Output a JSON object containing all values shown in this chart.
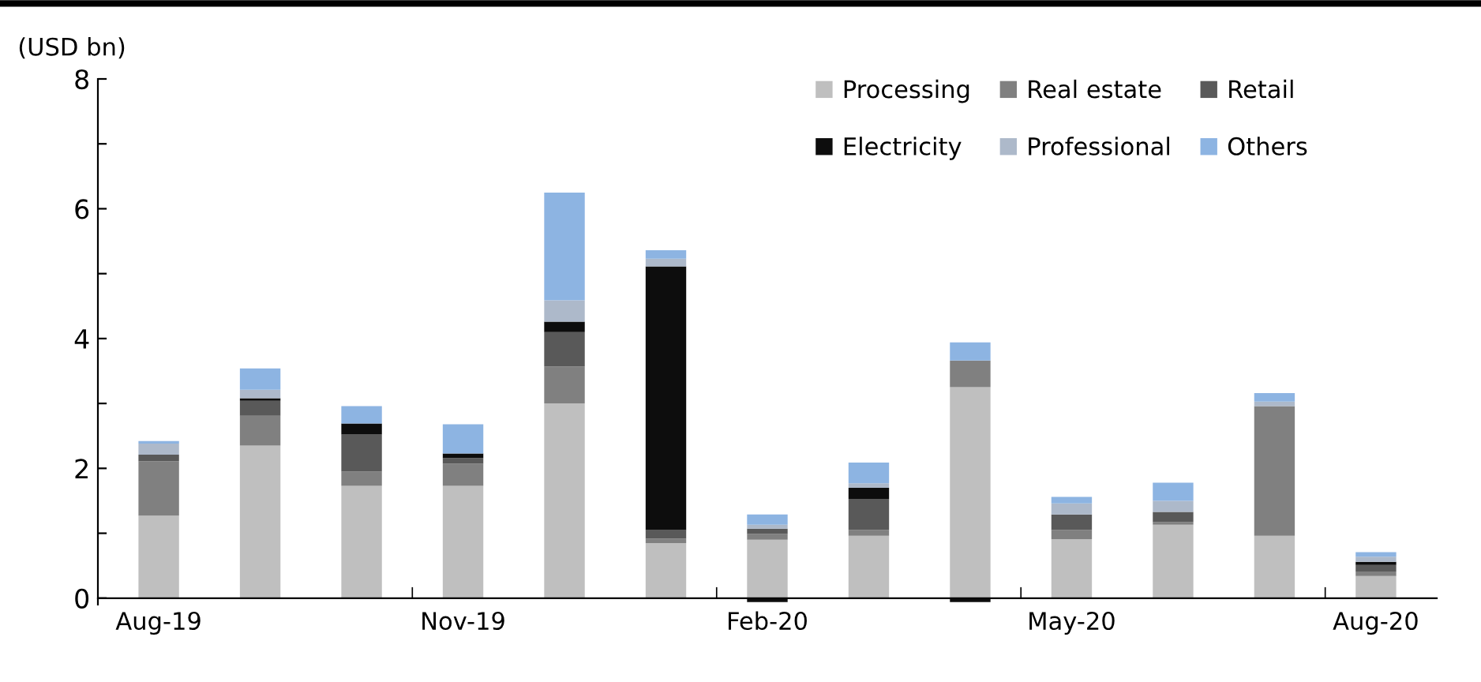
{
  "chart_data": {
    "type": "bar",
    "stacked": true,
    "ylabel": "(USD bn)",
    "categories": [
      "Aug-19",
      null,
      null,
      "Nov-19",
      null,
      null,
      "Feb-20",
      null,
      null,
      "May-20",
      null,
      null,
      "Aug-20"
    ],
    "ylim": [
      -0.1,
      8
    ],
    "yticks": [
      0,
      {
        "value": 1,
        "label": null
      },
      2,
      {
        "value": 3,
        "label": null
      },
      4,
      {
        "value": 5,
        "label": null
      },
      6,
      {
        "value": 7,
        "label": null
      },
      8
    ],
    "grid": false,
    "legend": "top right",
    "series": [
      {
        "name": "Processing",
        "color": "#bfbfbf",
        "values": [
          1.27,
          2.35,
          1.73,
          1.73,
          3.0,
          0.85,
          0.9,
          0.96,
          3.25,
          0.91,
          1.13,
          0.96,
          0.34
        ]
      },
      {
        "name": "Real estate",
        "color": "#808080",
        "values": [
          0.84,
          0.46,
          0.22,
          0.34,
          0.57,
          0.07,
          0.09,
          0.09,
          0.41,
          0.14,
          0.04,
          2.0,
          0.07
        ]
      },
      {
        "name": "Retail",
        "color": "#595959",
        "values": [
          0.1,
          0.23,
          0.57,
          0.09,
          0.53,
          0.13,
          0.08,
          0.48,
          0,
          0.24,
          0.16,
          0,
          0.1
        ]
      },
      {
        "name": "Electricity",
        "color": "#0d0d0d",
        "values": [
          0,
          0.04,
          0.17,
          0.07,
          0.16,
          4.06,
          -0.06,
          0.17,
          -0.06,
          0,
          0,
          0,
          0.05
        ]
      },
      {
        "name": "Professional",
        "color": "#adb9ca",
        "values": [
          0.17,
          0.13,
          null,
          null,
          0.33,
          0.12,
          0.06,
          0.07,
          null,
          0.17,
          0.17,
          0.07,
          0.08
        ]
      },
      {
        "name": "Others",
        "color": "#8db4e2",
        "values": [
          0.04,
          0.33,
          0.27,
          0.45,
          1.66,
          0.13,
          0.16,
          0.32,
          0.28,
          0.1,
          0.28,
          0.13,
          0.07
        ]
      }
    ]
  }
}
